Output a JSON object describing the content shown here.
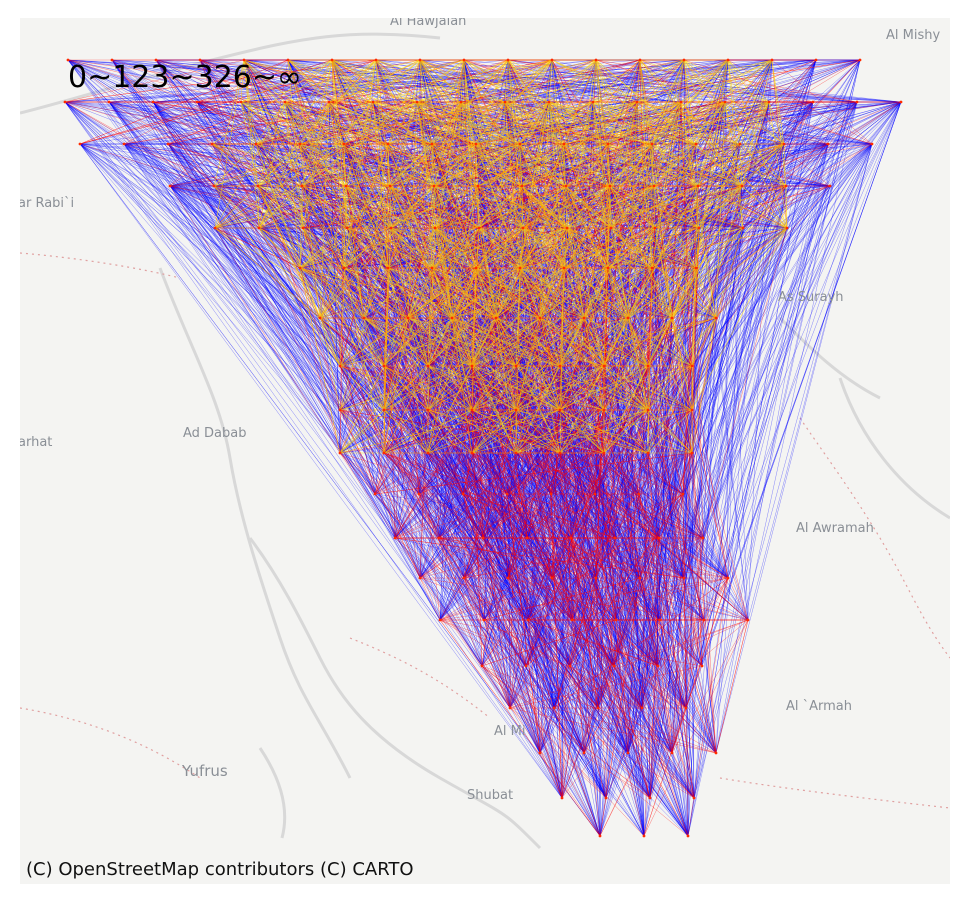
{
  "map": {
    "legend_label": "0~123~326~∞",
    "attribution": "(C) OpenStreetMap contributors (C) CARTO",
    "place_labels": {
      "al_hawjalah": "Al Hawjalah",
      "al_mishy": "Al Mishy",
      "ar_rabii": "ar Rabi`i",
      "ad_dabab": "Ad Dabab",
      "arhat": "arhat",
      "as_surayh": "As Surayh",
      "al_awramah": "Al Awramah",
      "al_armah": "Al `Armah",
      "yufrus": "Yufrus",
      "shubat": "Shubat",
      "al_mi": "Al Mi"
    },
    "colors": {
      "land": "#f4f4f2",
      "road": "#ffffff",
      "border": "#e0a0a0",
      "long_edges": "#0000ff",
      "mid_edges": "#ff0000",
      "short_edges": "#ffd700",
      "label": "#8a8f96"
    },
    "color_bins": [
      "0~123",
      "123~326",
      "326~∞"
    ]
  }
}
